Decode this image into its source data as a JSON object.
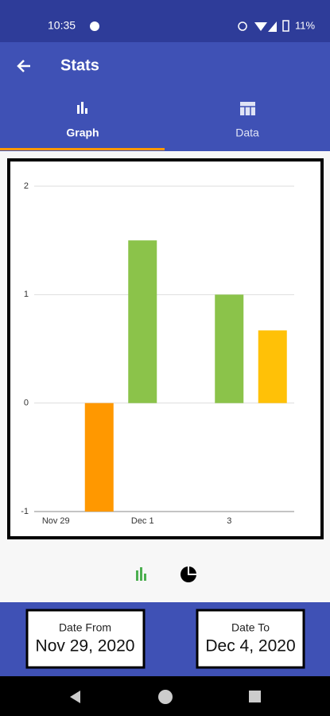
{
  "status_bar": {
    "time": "10:35",
    "battery": "11%"
  },
  "app_bar": {
    "title": "Stats"
  },
  "tabs": [
    "Graph",
    "Data"
  ],
  "chart_data": {
    "type": "bar",
    "categories": [
      "Nov 29",
      null,
      "Dec 1",
      null,
      "3",
      null
    ],
    "values": [
      null,
      -1,
      1.5,
      null,
      1,
      0.67
    ],
    "colors": [
      null,
      "#ff9800",
      "#8bc34a",
      null,
      "#8bc34a",
      "#ffc107"
    ],
    "ylim": [
      -1,
      2
    ],
    "yticks": [
      -1,
      0,
      1,
      2
    ],
    "grid": true
  },
  "date_from": {
    "label": "Date From",
    "value": "Nov 29, 2020"
  },
  "date_to": {
    "label": "Date To",
    "value": "Dec 4, 2020"
  }
}
